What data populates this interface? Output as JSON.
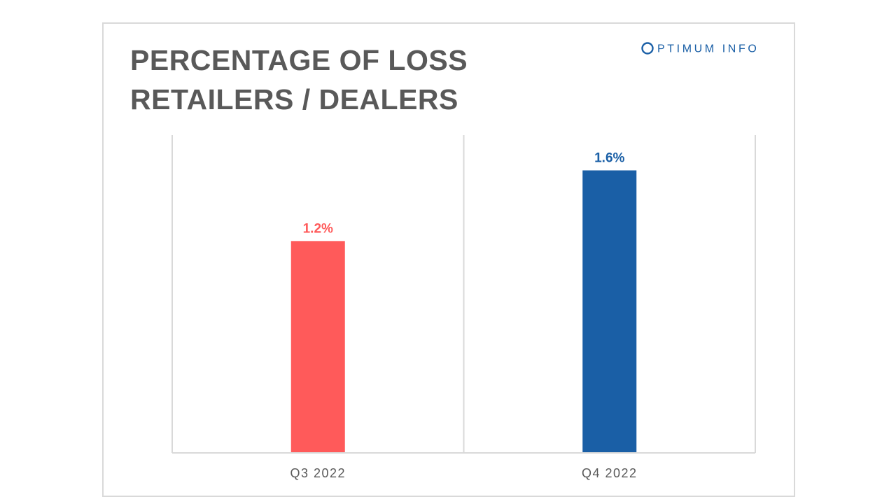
{
  "logo": {
    "text": "OPTIMUM INFO",
    "ring_color": "#1a5fa6"
  },
  "title_lines": [
    "PERCENTAGE OF LOSS",
    "RETAILERS / DEALERS"
  ],
  "colors": {
    "title": "#595959",
    "axis": "#d9d9d9",
    "tick_label": "#595959",
    "frame_border": "#d9d9d9"
  },
  "chart_data": {
    "type": "bar",
    "categories": [
      "Q3 2022",
      "Q4 2022"
    ],
    "values": [
      1.2,
      1.6
    ],
    "value_labels": [
      "1.2%",
      "1.6%"
    ],
    "bar_colors": [
      "#ff5a5a",
      "#1a5fa6"
    ],
    "title": "PERCENTAGE OF LOSS RETAILERS / DEALERS",
    "xlabel": "",
    "ylabel": "",
    "ylim": [
      0,
      1.8
    ],
    "grid": false,
    "legend": "none"
  }
}
